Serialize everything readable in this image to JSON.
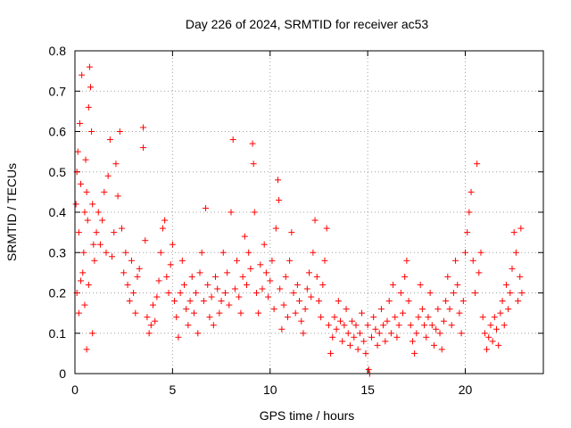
{
  "chart_data": {
    "type": "scatter",
    "title": "Day 226 of 2024, SRMTID for receiver ac53",
    "xlabel": "GPS time / hours",
    "ylabel": "SRMTID / TECUs",
    "xlim": [
      0,
      24
    ],
    "ylim": [
      0,
      0.8
    ],
    "xticks": [
      0,
      5,
      10,
      15,
      20
    ],
    "xtick_labels": [
      "0",
      "5",
      "10",
      "15",
      "20"
    ],
    "yticks": [
      0,
      0.1,
      0.2,
      0.3,
      0.4,
      0.5,
      0.6,
      0.7,
      0.8
    ],
    "ytick_labels": [
      "0",
      "0.1",
      "0.2",
      "0.3",
      "0.4",
      "0.5",
      "0.6",
      "0.7",
      "0.8"
    ],
    "grid": true,
    "marker": "plus",
    "color": "#ff0000",
    "series": [
      {
        "name": "SRMTID",
        "points": [
          [
            0.05,
            0.42
          ],
          [
            0.1,
            0.5
          ],
          [
            0.15,
            0.55
          ],
          [
            0.2,
            0.35
          ],
          [
            0.25,
            0.62
          ],
          [
            0.3,
            0.47
          ],
          [
            0.35,
            0.74
          ],
          [
            0.4,
            0.25
          ],
          [
            0.45,
            0.3
          ],
          [
            0.5,
            0.4
          ],
          [
            0.55,
            0.53
          ],
          [
            0.6,
            0.45
          ],
          [
            0.65,
            0.38
          ],
          [
            0.7,
            0.66
          ],
          [
            0.75,
            0.76
          ],
          [
            0.8,
            0.71
          ],
          [
            0.85,
            0.6
          ],
          [
            0.9,
            0.42
          ],
          [
            0.95,
            0.32
          ],
          [
            1.0,
            0.28
          ],
          [
            0.1,
            0.2
          ],
          [
            0.2,
            0.15
          ],
          [
            0.3,
            0.23
          ],
          [
            0.5,
            0.17
          ],
          [
            0.6,
            0.06
          ],
          [
            0.7,
            0.22
          ],
          [
            0.9,
            0.1
          ],
          [
            1.1,
            0.35
          ],
          [
            1.2,
            0.4
          ],
          [
            1.3,
            0.32
          ],
          [
            1.4,
            0.38
          ],
          [
            1.5,
            0.45
          ],
          [
            1.6,
            0.3
          ],
          [
            1.7,
            0.49
          ],
          [
            1.8,
            0.58
          ],
          [
            1.9,
            0.29
          ],
          [
            2.0,
            0.35
          ],
          [
            2.1,
            0.52
          ],
          [
            2.2,
            0.44
          ],
          [
            2.3,
            0.6
          ],
          [
            2.4,
            0.36
          ],
          [
            2.5,
            0.25
          ],
          [
            2.6,
            0.3
          ],
          [
            2.7,
            0.22
          ],
          [
            2.8,
            0.18
          ],
          [
            2.9,
            0.28
          ],
          [
            3.0,
            0.2
          ],
          [
            3.1,
            0.15
          ],
          [
            3.2,
            0.24
          ],
          [
            3.3,
            0.26
          ],
          [
            3.5,
            0.61
          ],
          [
            3.5,
            0.56
          ],
          [
            3.6,
            0.33
          ],
          [
            3.7,
            0.14
          ],
          [
            3.8,
            0.1
          ],
          [
            3.9,
            0.12
          ],
          [
            4.0,
            0.17
          ],
          [
            4.1,
            0.13
          ],
          [
            4.2,
            0.19
          ],
          [
            4.3,
            0.23
          ],
          [
            4.4,
            0.3
          ],
          [
            4.5,
            0.36
          ],
          [
            4.6,
            0.38
          ],
          [
            4.7,
            0.24
          ],
          [
            4.8,
            0.2
          ],
          [
            4.9,
            0.27
          ],
          [
            5.0,
            0.32
          ],
          [
            5.1,
            0.18
          ],
          [
            5.2,
            0.14
          ],
          [
            5.3,
            0.09
          ],
          [
            5.4,
            0.2
          ],
          [
            5.5,
            0.28
          ],
          [
            5.6,
            0.22
          ],
          [
            5.7,
            0.16
          ],
          [
            5.8,
            0.12
          ],
          [
            5.9,
            0.18
          ],
          [
            6.0,
            0.24
          ],
          [
            6.1,
            0.15
          ],
          [
            6.2,
            0.2
          ],
          [
            6.3,
            0.1
          ],
          [
            6.4,
            0.25
          ],
          [
            6.5,
            0.3
          ],
          [
            6.6,
            0.18
          ],
          [
            6.7,
            0.41
          ],
          [
            6.8,
            0.22
          ],
          [
            6.9,
            0.14
          ],
          [
            7.0,
            0.19
          ],
          [
            7.1,
            0.12
          ],
          [
            7.2,
            0.24
          ],
          [
            7.3,
            0.21
          ],
          [
            7.4,
            0.15
          ],
          [
            7.5,
            0.18
          ],
          [
            7.6,
            0.3
          ],
          [
            7.7,
            0.2
          ],
          [
            7.8,
            0.25
          ],
          [
            7.9,
            0.17
          ],
          [
            8.0,
            0.4
          ],
          [
            8.1,
            0.58
          ],
          [
            8.2,
            0.21
          ],
          [
            8.3,
            0.28
          ],
          [
            8.4,
            0.19
          ],
          [
            8.5,
            0.15
          ],
          [
            8.6,
            0.24
          ],
          [
            8.7,
            0.34
          ],
          [
            8.8,
            0.22
          ],
          [
            8.9,
            0.3
          ],
          [
            9.0,
            0.26
          ],
          [
            9.1,
            0.57
          ],
          [
            9.15,
            0.52
          ],
          [
            9.2,
            0.4
          ],
          [
            9.3,
            0.2
          ],
          [
            9.4,
            0.15
          ],
          [
            9.5,
            0.27
          ],
          [
            9.6,
            0.21
          ],
          [
            9.7,
            0.32
          ],
          [
            9.8,
            0.25
          ],
          [
            9.9,
            0.19
          ],
          [
            10.0,
            0.23
          ],
          [
            10.1,
            0.28
          ],
          [
            10.2,
            0.16
          ],
          [
            10.3,
            0.36
          ],
          [
            10.4,
            0.48
          ],
          [
            10.45,
            0.43
          ],
          [
            10.5,
            0.21
          ],
          [
            10.6,
            0.11
          ],
          [
            10.7,
            0.17
          ],
          [
            10.8,
            0.24
          ],
          [
            10.9,
            0.14
          ],
          [
            11.0,
            0.28
          ],
          [
            11.1,
            0.35
          ],
          [
            11.2,
            0.2
          ],
          [
            11.3,
            0.15
          ],
          [
            11.4,
            0.22
          ],
          [
            11.5,
            0.18
          ],
          [
            11.6,
            0.13
          ],
          [
            11.7,
            0.1
          ],
          [
            11.8,
            0.16
          ],
          [
            11.9,
            0.21
          ],
          [
            12.0,
            0.25
          ],
          [
            12.1,
            0.19
          ],
          [
            12.2,
            0.3
          ],
          [
            12.3,
            0.38
          ],
          [
            12.4,
            0.24
          ],
          [
            12.5,
            0.18
          ],
          [
            12.6,
            0.14
          ],
          [
            12.7,
            0.22
          ],
          [
            12.8,
            0.28
          ],
          [
            12.9,
            0.36
          ],
          [
            13.0,
            0.12
          ],
          [
            13.1,
            0.05
          ],
          [
            13.2,
            0.09
          ],
          [
            13.3,
            0.14
          ],
          [
            13.4,
            0.11
          ],
          [
            13.5,
            0.18
          ],
          [
            13.6,
            0.13
          ],
          [
            13.7,
            0.08
          ],
          [
            13.8,
            0.12
          ],
          [
            13.9,
            0.16
          ],
          [
            14.0,
            0.1
          ],
          [
            14.1,
            0.07
          ],
          [
            14.2,
            0.13
          ],
          [
            14.3,
            0.09
          ],
          [
            14.4,
            0.12
          ],
          [
            14.5,
            0.06
          ],
          [
            14.6,
            0.1
          ],
          [
            14.7,
            0.15
          ],
          [
            14.8,
            0.08
          ],
          [
            14.9,
            0.05
          ],
          [
            15.0,
            0.12
          ],
          [
            15.05,
            0.01
          ],
          [
            15.1,
            0.0
          ],
          [
            15.2,
            0.09
          ],
          [
            15.3,
            0.14
          ],
          [
            15.4,
            0.11
          ],
          [
            15.5,
            0.07
          ],
          [
            15.6,
            0.1
          ],
          [
            15.7,
            0.16
          ],
          [
            15.8,
            0.12
          ],
          [
            15.9,
            0.08
          ],
          [
            16.0,
            0.13
          ],
          [
            16.1,
            0.18
          ],
          [
            16.2,
            0.1
          ],
          [
            16.3,
            0.22
          ],
          [
            16.4,
            0.14
          ],
          [
            16.5,
            0.09
          ],
          [
            16.6,
            0.12
          ],
          [
            16.7,
            0.2
          ],
          [
            16.8,
            0.15
          ],
          [
            16.9,
            0.24
          ],
          [
            17.0,
            0.28
          ],
          [
            17.1,
            0.18
          ],
          [
            17.2,
            0.12
          ],
          [
            17.3,
            0.08
          ],
          [
            17.4,
            0.05
          ],
          [
            17.5,
            0.1
          ],
          [
            17.6,
            0.14
          ],
          [
            17.7,
            0.22
          ],
          [
            17.8,
            0.16
          ],
          [
            17.9,
            0.12
          ],
          [
            18.0,
            0.09
          ],
          [
            18.1,
            0.14
          ],
          [
            18.2,
            0.2
          ],
          [
            18.3,
            0.12
          ],
          [
            18.4,
            0.07
          ],
          [
            18.5,
            0.11
          ],
          [
            18.6,
            0.16
          ],
          [
            18.7,
            0.1
          ],
          [
            18.8,
            0.06
          ],
          [
            18.9,
            0.13
          ],
          [
            19.0,
            0.18
          ],
          [
            19.1,
            0.24
          ],
          [
            19.2,
            0.16
          ],
          [
            19.3,
            0.12
          ],
          [
            19.4,
            0.2
          ],
          [
            19.5,
            0.28
          ],
          [
            19.6,
            0.22
          ],
          [
            19.7,
            0.15
          ],
          [
            19.8,
            0.1
          ],
          [
            19.9,
            0.18
          ],
          [
            20.0,
            0.3
          ],
          [
            20.1,
            0.35
          ],
          [
            20.2,
            0.4
          ],
          [
            20.3,
            0.45
          ],
          [
            20.4,
            0.28
          ],
          [
            20.5,
            0.2
          ],
          [
            20.6,
            0.52
          ],
          [
            20.7,
            0.25
          ],
          [
            20.8,
            0.3
          ],
          [
            20.9,
            0.14
          ],
          [
            21.0,
            0.1
          ],
          [
            21.1,
            0.06
          ],
          [
            21.2,
            0.09
          ],
          [
            21.3,
            0.12
          ],
          [
            21.4,
            0.08
          ],
          [
            21.5,
            0.14
          ],
          [
            21.6,
            0.11
          ],
          [
            21.7,
            0.07
          ],
          [
            21.8,
            0.15
          ],
          [
            21.9,
            0.18
          ],
          [
            22.0,
            0.12
          ],
          [
            22.1,
            0.22
          ],
          [
            22.2,
            0.16
          ],
          [
            22.3,
            0.2
          ],
          [
            22.4,
            0.26
          ],
          [
            22.5,
            0.35
          ],
          [
            22.6,
            0.3
          ],
          [
            22.7,
            0.18
          ],
          [
            22.8,
            0.24
          ],
          [
            22.85,
            0.36
          ],
          [
            22.9,
            0.2
          ]
        ]
      }
    ]
  }
}
